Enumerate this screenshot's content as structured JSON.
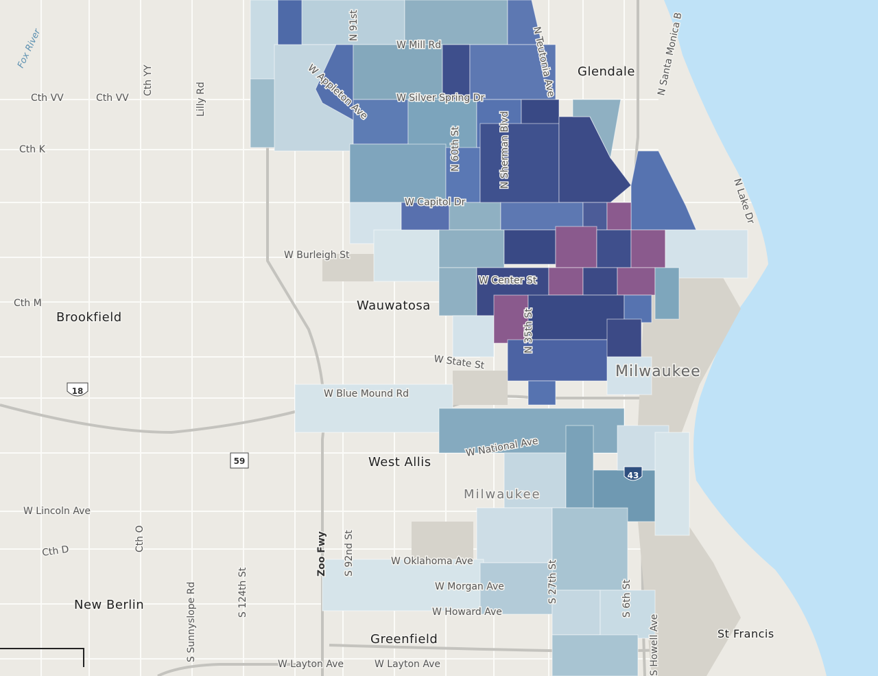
{
  "places": [
    "Glendale",
    "Brookfield",
    "Wauwatosa",
    "Milwaukee",
    "West Allis",
    "Milwaukee",
    "New Berlin",
    "Greenfield",
    "St Francis"
  ],
  "roads": [
    "W Mill Rd",
    "Cth VV",
    "Cth VV",
    "Cth YY",
    "Lilly Rd",
    "Cth K",
    "W Silver Spring Dr",
    "W Appleton Ave",
    "N 91st",
    "N Teutonia Ave",
    "N Santa Monica B",
    "N 60th St",
    "N Sherman Blvd",
    "W Capitol Dr",
    "N Lake Dr",
    "W Burleigh St",
    "Cth M",
    "W Center St",
    "N 35th St",
    "W State St",
    "W Blue Mound Rd",
    "W National Ave",
    "S 92nd St",
    "Zoo Fwy",
    "S 124th St",
    "S Sunnyslope Rd",
    "Cth O",
    "Cth D",
    "W Lincoln Ave",
    "W Oklahoma Ave",
    "W Morgan Ave",
    "W Howard Ave",
    "S 27th St",
    "S 6th St",
    "S Howell Ave",
    "W Layton Ave",
    "W Layton Ave"
  ],
  "water": [
    "Fox River"
  ],
  "shields": [
    "18",
    "59",
    "43"
  ]
}
